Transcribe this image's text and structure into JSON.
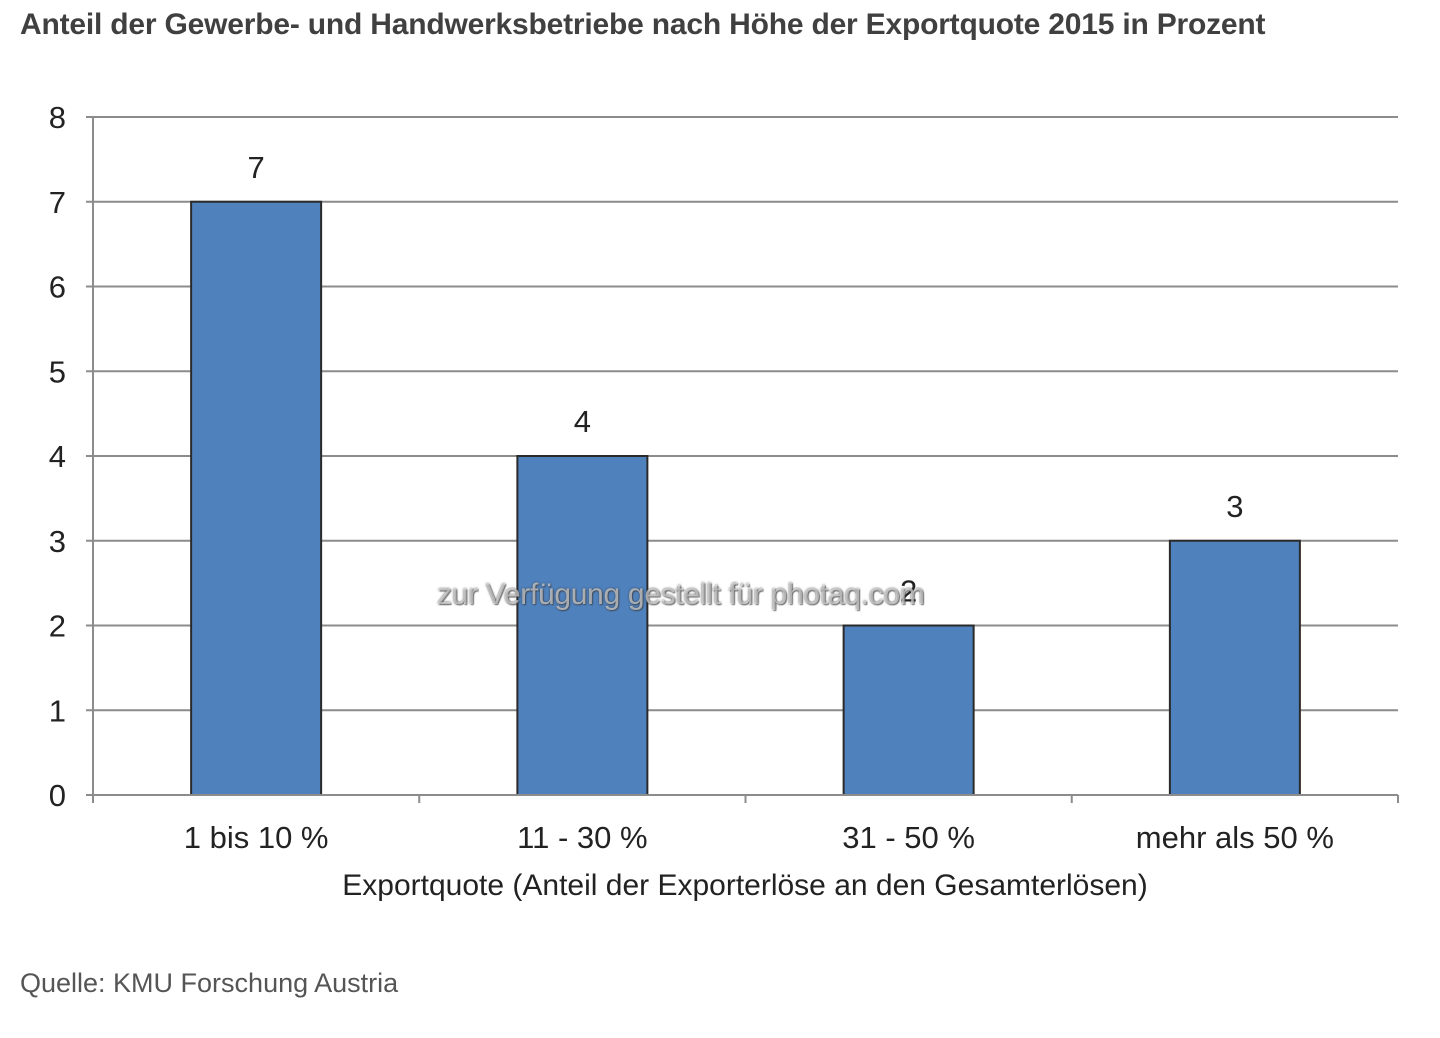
{
  "chart_data": {
    "type": "bar",
    "title": "Anteil der Gewerbe- und Handwerksbetriebe nach Höhe der Exportquote 2015 in Prozent",
    "categories": [
      "1 bis 10 %",
      "11 - 30 %",
      "31 - 50 %",
      "mehr als 50 %"
    ],
    "values": [
      7,
      4,
      2,
      3
    ],
    "data_labels": [
      "7",
      "4",
      "2",
      "3"
    ],
    "xlabel": "Exportquote (Anteil der Exporterlöse an den Gesamterlösen)",
    "ylabel": "",
    "ylim": [
      0,
      8
    ],
    "yticks": [
      "0",
      "1",
      "2",
      "3",
      "4",
      "5",
      "6",
      "7",
      "8"
    ],
    "grid": true,
    "bar_color": "#4f81bd",
    "bar_edge_color": "#2a2a2a",
    "grid_color": "#8c8c8c"
  },
  "source": "Quelle: KMU Forschung Austria",
  "watermark": "zur Verfügung gestellt für photaq.com"
}
